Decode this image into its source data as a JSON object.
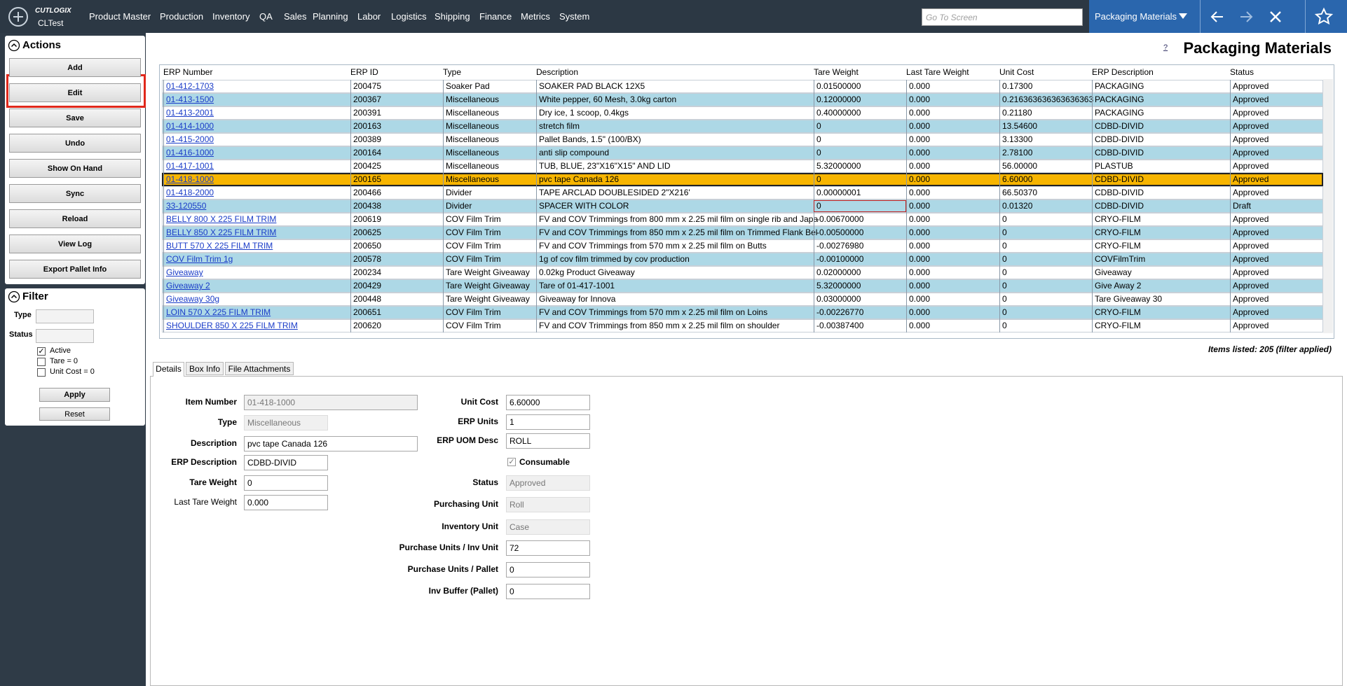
{
  "header": {
    "logo": "CUTLOGIX",
    "environment": "CLTest",
    "menu": [
      "Product Master",
      "Production",
      "Inventory",
      "QA",
      "Sales",
      "Planning",
      "Labor",
      "Logistics",
      "Shipping",
      "Finance",
      "Metrics",
      "System"
    ],
    "search_placeholder": "Go To Screen",
    "screen": "Packaging Materials"
  },
  "actions": {
    "title": "Actions",
    "buttons": [
      "Add",
      "Edit",
      "Save",
      "Undo",
      "Show On Hand",
      "Sync",
      "Reload",
      "View Log",
      "Export Pallet Info"
    ]
  },
  "filter": {
    "title": "Filter",
    "type_label": "Type",
    "status_label": "Status",
    "checkboxes": [
      {
        "label": "Active",
        "checked": true
      },
      {
        "label": "Tare = 0",
        "checked": false
      },
      {
        "label": "Unit Cost = 0",
        "checked": false
      }
    ],
    "apply": "Apply",
    "reset": "Reset"
  },
  "help": "?",
  "title": "Packaging Materials",
  "table": {
    "columns": [
      "ERP Number",
      "ERP ID",
      "Type",
      "Description",
      "Tare Weight",
      "Last Tare Weight",
      "Unit Cost",
      "ERP Description",
      "Status"
    ],
    "rows": [
      [
        "01-412-1703",
        "200475",
        "Soaker Pad",
        "SOAKER PAD BLACK 12X5",
        "0.01500000",
        "0.000",
        "0.17300",
        "PACKAGING",
        "Approved"
      ],
      [
        "01-413-1500",
        "200367",
        "Miscellaneous",
        "White pepper, 60 Mesh, 3.0kg carton",
        "0.12000000",
        "0.000",
        "0.216363636363636363",
        "PACKAGING",
        "Approved"
      ],
      [
        "01-413-2001",
        "200391",
        "Miscellaneous",
        "Dry ice, 1 scoop, 0.4kgs",
        "0.40000000",
        "0.000",
        "0.21180",
        "PACKAGING",
        "Approved"
      ],
      [
        "01-414-1000",
        "200163",
        "Miscellaneous",
        "stretch film",
        "0",
        "0.000",
        "13.54600",
        "CDBD-DIVID",
        "Approved"
      ],
      [
        "01-415-2000",
        "200389",
        "Miscellaneous",
        "Pallet Bands, 1.5\" (100/BX)",
        "0",
        "0.000",
        "3.13300",
        "CDBD-DIVID",
        "Approved"
      ],
      [
        "01-416-1000",
        "200164",
        "Miscellaneous",
        "anti slip compound",
        "0",
        "0.000",
        "2.78100",
        "CDBD-DIVID",
        "Approved"
      ],
      [
        "01-417-1001",
        "200425",
        "Miscellaneous",
        "TUB, BLUE, 23\"X16\"X15\" AND LID",
        "5.32000000",
        "0.000",
        "56.00000",
        "PLASTUB",
        "Approved"
      ],
      [
        "01-418-1000",
        "200165",
        "Miscellaneous",
        "pvc tape Canada 126",
        "0",
        "0.000",
        "6.60000",
        "CDBD-DIVID",
        "Approved"
      ],
      [
        "01-418-2000",
        "200466",
        "Divider",
        "TAPE ARCLAD DOUBLESIDED 2\"X216'",
        "0.00000001",
        "0.000",
        "66.50370",
        "CDBD-DIVID",
        "Approved"
      ],
      [
        "33-120550",
        "200438",
        "Divider",
        "SPACER WITH COLOR",
        "0",
        "0.000",
        "0.01320",
        "CDBD-DIVID",
        "Draft"
      ],
      [
        "BELLY 800 X 225 FILM TRIM",
        "200619",
        "COV Film Trim",
        "FV and COV Trimmings from 800 mm x 2.25 mil film on single rib and Japa",
        "-0.00670000",
        "0.000",
        "0",
        "CRYO-FILM",
        "Approved"
      ],
      [
        "BELLY 850 X 225 FILM TRIM",
        "200625",
        "COV Film Trim",
        "FV and COV Trimmings from 850 mm x 2.25 mil film on Trimmed Flank Bel",
        "-0.00500000",
        "0.000",
        "0",
        "CRYO-FILM",
        "Approved"
      ],
      [
        "BUTT 570 X 225 FILM TRIM",
        "200650",
        "COV Film Trim",
        "FV and COV Trimmings from 570 mm x 2.25 mil film on Butts",
        "-0.00276980",
        "0.000",
        "0",
        "CRYO-FILM",
        "Approved"
      ],
      [
        "COV Film Trim 1g",
        "200578",
        "COV Film Trim",
        "1g of cov film trimmed by cov production",
        "-0.00100000",
        "0.000",
        "0",
        "COVFilmTrim",
        "Approved"
      ],
      [
        "Giveaway",
        "200234",
        "Tare Weight Giveaway",
        "0.02kg Product Giveaway",
        "0.02000000",
        "0.000",
        "0",
        "Giveaway",
        "Approved"
      ],
      [
        "Giveaway 2",
        "200429",
        "Tare Weight Giveaway",
        "Tare of 01-417-1001",
        "5.32000000",
        "0.000",
        "0",
        "Give Away 2",
        "Approved"
      ],
      [
        "Giveaway 30g",
        "200448",
        "Tare Weight Giveaway",
        "Giveaway for Innova",
        "0.03000000",
        "0.000",
        "0",
        "Tare Giveaway 30",
        "Approved"
      ],
      [
        "LOIN 570 X 225 FILM TRIM",
        "200651",
        "COV Film Trim",
        "FV and COV Trimmings from 570 mm x 2.25 mil film on Loins",
        "-0.00226770",
        "0.000",
        "0",
        "CRYO-FILM",
        "Approved"
      ],
      [
        "SHOULDER 850 X 225 FILM TRIM",
        "200620",
        "COV Film Trim",
        "FV and COV Trimmings from 850 mm x 2.25 mil film on shoulder",
        "-0.00387400",
        "0.000",
        "0",
        "CRYO-FILM",
        "Approved"
      ]
    ]
  },
  "items_listed": "Items listed: 205 (filter applied)",
  "tabs": [
    "Details",
    "Box Info",
    "File Attachments"
  ],
  "form": {
    "left": [
      {
        "label": "Item Number",
        "value": "01-418-1000"
      },
      {
        "label": "Type",
        "value": "Miscellaneous"
      },
      {
        "label": "Description",
        "value": "pvc tape Canada 126"
      },
      {
        "label": "ERP Description",
        "value": "CDBD-DIVID"
      },
      {
        "label": "Tare Weight",
        "value": "0"
      },
      {
        "label": "Last Tare Weight",
        "value": "0.000"
      }
    ],
    "right": [
      {
        "label": "Unit Cost",
        "value": "6.60000"
      },
      {
        "label": "ERP Units",
        "value": "1"
      },
      {
        "label": "ERP UOM Desc",
        "value": "ROLL"
      },
      {
        "label": "Consumable",
        "checked": true
      },
      {
        "label": "Status",
        "value": "Approved"
      },
      {
        "label": "Purchasing Unit",
        "value": "Roll"
      },
      {
        "label": "Inventory Unit",
        "value": "Case"
      },
      {
        "label": "Purchase Units / Inv Unit",
        "value": "72"
      },
      {
        "label": "Purchase Units / Pallet",
        "value": "0"
      },
      {
        "label": "Inv Buffer (Pallet)",
        "value": "0"
      }
    ]
  }
}
